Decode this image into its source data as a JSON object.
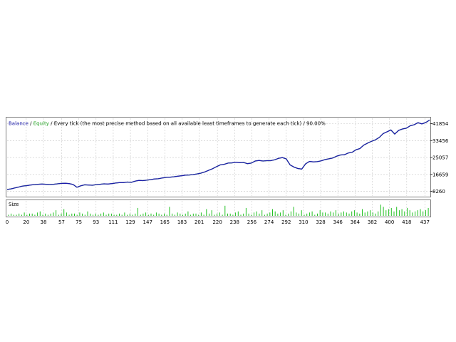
{
  "header": {
    "balance_label": "Balance",
    "separator_1": " / ",
    "equity_label": "Equity",
    "separator_2": " / ",
    "description": "Every tick (the most precise method based on all available least timeframes to generate each tick)",
    "separator_3": " / ",
    "quality": "90.00%"
  },
  "size_panel": {
    "label": "Size"
  },
  "colors": {
    "balance": "#1c1caa",
    "equity": "#2ea82e",
    "volume": "#22c022",
    "grid": "#c8c8c8",
    "frame": "#7f7f7f"
  },
  "chart_data": [
    {
      "type": "line",
      "series": [
        {
          "name": "Balance",
          "y_values": [
            9200,
            9500,
            10000,
            10400,
            10900,
            11100,
            11400,
            11600,
            11800,
            11900,
            11800,
            11700,
            11800,
            12000,
            12200,
            12300,
            12100,
            11700,
            10300,
            11000,
            11500,
            11400,
            11300,
            11600,
            11800,
            12000,
            11900,
            12100,
            12400,
            12600,
            12600,
            12900,
            12700,
            13300,
            13700,
            13600,
            13800,
            14100,
            14400,
            14500,
            14900,
            15200,
            15300,
            15500,
            15800,
            16000,
            16300,
            16400,
            16600,
            16900,
            17300,
            17900,
            18700,
            19500,
            20500,
            21400,
            21700,
            22300,
            22400,
            22700,
            22500,
            22600,
            22000,
            22300,
            23300,
            23600,
            23300,
            23500,
            23500,
            23900,
            24600,
            25000,
            24400,
            21400,
            20300,
            19600,
            19300,
            21900,
            23100,
            22900,
            23000,
            23400,
            24000,
            24400,
            24800,
            25700,
            26300,
            26400,
            27300,
            27600,
            28900,
            29500,
            31200,
            32200,
            33100,
            33800,
            35000,
            36900,
            37800,
            38700,
            36700,
            38500,
            39200,
            39600,
            40800,
            41300,
            42300,
            41700,
            42400,
            43600
          ]
        },
        {
          "name": "Equity",
          "y_values": [
            9200,
            9500,
            10000,
            10400,
            10900,
            11100,
            11400,
            11600,
            11800,
            11900,
            11800,
            11700,
            11800,
            12000,
            12200,
            12300,
            12100,
            11700,
            10300,
            11000,
            11500,
            11400,
            11300,
            11600,
            11800,
            12000,
            11900,
            12100,
            12400,
            12600,
            12600,
            12900,
            12700,
            13300,
            13700,
            13600,
            13800,
            14100,
            14400,
            14500,
            14900,
            15200,
            15300,
            15500,
            15800,
            16000,
            16300,
            16400,
            16600,
            16900,
            17300,
            17900,
            18700,
            19500,
            20500,
            21400,
            21700,
            22300,
            22400,
            22700,
            22500,
            22600,
            22000,
            22300,
            23300,
            23600,
            23300,
            23500,
            23500,
            23900,
            24600,
            25000,
            24400,
            21400,
            20300,
            19600,
            19300,
            21900,
            23100,
            22900,
            23000,
            23400,
            24000,
            24400,
            24800,
            25700,
            26300,
            26400,
            27300,
            27600,
            28900,
            29500,
            31200,
            32200,
            33100,
            33800,
            35000,
            36900,
            37800,
            38700,
            36700,
            38500,
            39200,
            39600,
            40800,
            41300,
            42300,
            41700,
            42400,
            43600
          ]
        }
      ],
      "y_ticks": [
        8260,
        16659,
        25057,
        33456,
        41854
      ],
      "ylim": [
        6000,
        44500
      ],
      "x_ticks": [
        "0",
        "20",
        "38",
        "57",
        "75",
        "93",
        "111",
        "129",
        "147",
        "165",
        "183",
        "201",
        "220",
        "238",
        "256",
        "274",
        "292",
        "310",
        "328",
        "346",
        "364",
        "382",
        "400",
        "418",
        "437"
      ],
      "xlim": [
        0,
        442
      ],
      "grid": true
    },
    {
      "type": "bar",
      "series": [
        {
          "name": "Size",
          "values": [
            1,
            2,
            1,
            1,
            2,
            1,
            3,
            1,
            2,
            2,
            1,
            3,
            4,
            1,
            2,
            1,
            2,
            3,
            5,
            1,
            2,
            6,
            3,
            1,
            2,
            2,
            1,
            3,
            2,
            1,
            4,
            2,
            1,
            2,
            1,
            2,
            3,
            1,
            2,
            2,
            1,
            1,
            2,
            1,
            3,
            1,
            2,
            1,
            2,
            7,
            1,
            2,
            3,
            1,
            2,
            1,
            3,
            2,
            1,
            2,
            1,
            8,
            2,
            1,
            3,
            2,
            1,
            2,
            4,
            1,
            2,
            2,
            1,
            3,
            1,
            6,
            2,
            5,
            1,
            2,
            3,
            1,
            9,
            2,
            2,
            1,
            3,
            4,
            1,
            2,
            7,
            2,
            1,
            3,
            4,
            2,
            5,
            1,
            2,
            3,
            6,
            4,
            2,
            3,
            5,
            1,
            2,
            4,
            8,
            3,
            2,
            5,
            1,
            2,
            3,
            4,
            1,
            2,
            5,
            3,
            3,
            2,
            4,
            3,
            5,
            2,
            3,
            4,
            3,
            2,
            4,
            5,
            3,
            2,
            6,
            3,
            4,
            5,
            3,
            2,
            4,
            10,
            8,
            5,
            6,
            7,
            4,
            8,
            5,
            6,
            4,
            7,
            5,
            3,
            4,
            5,
            6,
            4,
            5,
            7
          ]
        }
      ],
      "ylim": [
        0,
        12
      ]
    }
  ]
}
